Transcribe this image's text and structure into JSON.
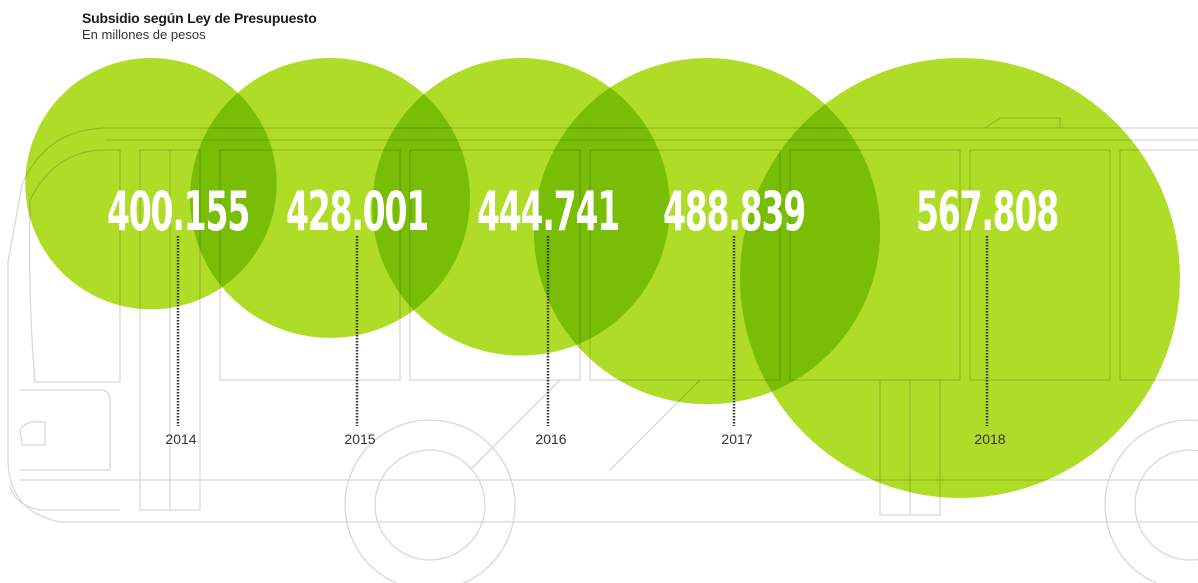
{
  "header": {
    "title": "Subsidio según Ley de Presupuesto",
    "subtitle": "En millones de pesos"
  },
  "colors": {
    "bubble": "#a6d80f",
    "bubble_opacity": 0.9,
    "overlap": "#6cc03a",
    "value_text": "#ffffff",
    "leader_line": "#333333",
    "bus_outline": "#d8d8d8"
  },
  "chart_data": {
    "type": "bubble",
    "title": "Subsidio según Ley de Presupuesto",
    "subtitle": "En millones de pesos",
    "categories": [
      "2014",
      "2015",
      "2016",
      "2017",
      "2018"
    ],
    "values": [
      400155,
      428001,
      444741,
      488839,
      567808
    ],
    "value_labels": [
      "400.155",
      "428.001",
      "444.741",
      "488.839",
      "567.808"
    ],
    "unit": "millones de pesos"
  }
}
